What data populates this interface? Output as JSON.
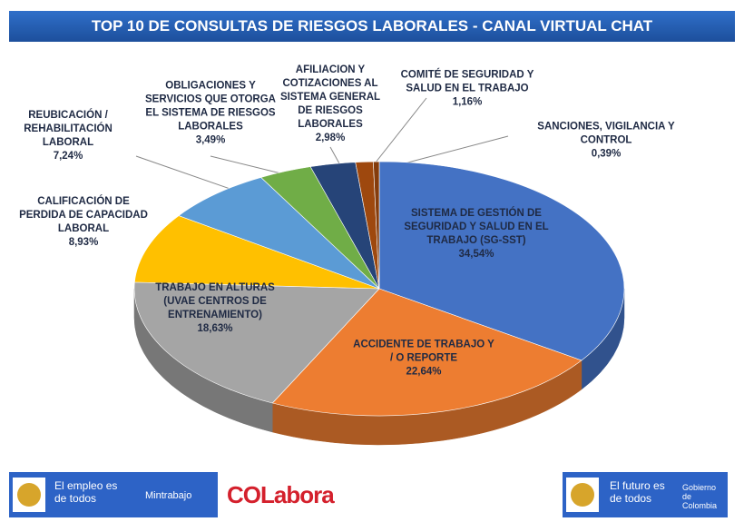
{
  "chart_data": {
    "type": "pie",
    "title": "TOP 10 DE CONSULTAS DE RIESGOS LABORALES - CANAL VIRTUAL CHAT",
    "categories": [
      "SISTEMA DE GESTIÓN DE SEGURIDAD Y SALUD EN EL TRABAJO (SG-SST)",
      "ACCIDENTE DE TRABAJO Y / O REPORTE",
      "TRABAJO EN ALTURAS (UVAE CENTROS DE ENTRENAMIENTO)",
      "CALIFICACIÓN DE PERDIDA DE CAPACIDAD LABORAL",
      "REUBICACIÓN / REHABILITACIÓN LABORAL",
      "OBLIGACIONES Y SERVICIOS QUE OTORGA EL SISTEMA DE RIESGOS LABORALES",
      "AFILIACION Y COTIZACIONES AL SISTEMA GENERAL DE RIESGOS LABORALES",
      "COMITÉ DE SEGURIDAD Y SALUD EN EL TRABAJO",
      "SANCIONES, VIGILANCIA Y CONTROL"
    ],
    "values": [
      34.54,
      22.64,
      18.63,
      8.93,
      7.24,
      3.49,
      2.98,
      1.16,
      0.39
    ],
    "value_labels": [
      "34,54%",
      "22,64%",
      "18,63%",
      "8,93%",
      "7,24%",
      "3,49%",
      "2,98%",
      "1,16%",
      "0,39%"
    ],
    "colors": [
      "#4472c4",
      "#ed7d31",
      "#a5a5a5",
      "#ffc000",
      "#5b9bd5",
      "#70ad47",
      "#264478",
      "#9e480e",
      "#843c0c"
    ]
  },
  "footer": {
    "left_slogan": "El empleo es de todos",
    "left_entity": "Mintrabajo",
    "brand": "COLabora",
    "right_slogan": "El futuro es de todos",
    "right_entity": "Gobierno de Colombia"
  }
}
